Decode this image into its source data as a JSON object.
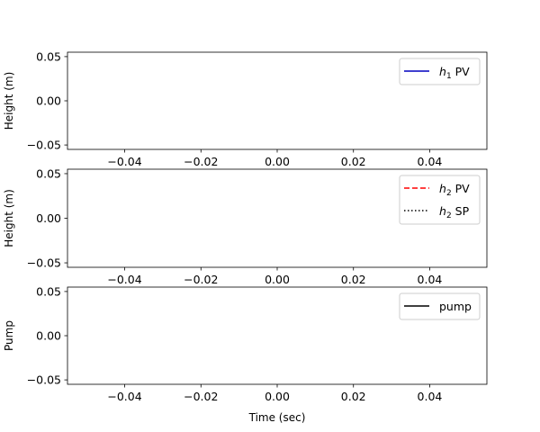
{
  "chart_data": [
    {
      "type": "line",
      "panel": "top",
      "ylabel": "Height (m)",
      "xlabel": "",
      "xlim": [
        -0.055,
        0.055
      ],
      "ylim": [
        -0.055,
        0.055
      ],
      "xticks": [
        -0.04,
        -0.02,
        0.0,
        0.02,
        0.04
      ],
      "xtick_labels": [
        "−0.04",
        "−0.02",
        "0.00",
        "0.02",
        "0.04"
      ],
      "yticks": [
        -0.05,
        0.0,
        0.05
      ],
      "ytick_labels": [
        "−0.05",
        "0.00",
        "0.05"
      ],
      "grid": false,
      "legend_position": "upper right",
      "series": [
        {
          "name": "h1 PV",
          "label_main": "h",
          "label_sub": "1",
          "label_rest": " PV",
          "color": "#0000bf",
          "style": "solid",
          "x": [],
          "y": []
        }
      ]
    },
    {
      "type": "line",
      "panel": "middle",
      "ylabel": "Height (m)",
      "xlabel": "",
      "xlim": [
        -0.055,
        0.055
      ],
      "ylim": [
        -0.055,
        0.055
      ],
      "xticks": [
        -0.04,
        -0.02,
        0.0,
        0.02,
        0.04
      ],
      "xtick_labels": [
        "−0.04",
        "−0.02",
        "0.00",
        "0.02",
        "0.04"
      ],
      "yticks": [
        -0.05,
        0.0,
        0.05
      ],
      "ytick_labels": [
        "−0.05",
        "0.00",
        "0.05"
      ],
      "grid": false,
      "legend_position": "upper right",
      "series": [
        {
          "name": "h2 PV",
          "label_main": "h",
          "label_sub": "2",
          "label_rest": " PV",
          "color": "#ff0000",
          "style": "dashed",
          "x": [],
          "y": []
        },
        {
          "name": "h2 SP",
          "label_main": "h",
          "label_sub": "2",
          "label_rest": " SP",
          "color": "#000000",
          "style": "dotted",
          "x": [],
          "y": []
        }
      ]
    },
    {
      "type": "line",
      "panel": "bottom",
      "ylabel": "Pump",
      "xlabel": "Time (sec)",
      "xlim": [
        -0.055,
        0.055
      ],
      "ylim": [
        -0.055,
        0.055
      ],
      "xticks": [
        -0.04,
        -0.02,
        0.0,
        0.02,
        0.04
      ],
      "xtick_labels": [
        "−0.04",
        "−0.02",
        "0.00",
        "0.02",
        "0.04"
      ],
      "yticks": [
        -0.05,
        0.0,
        0.05
      ],
      "ytick_labels": [
        "−0.05",
        "0.00",
        "0.05"
      ],
      "grid": false,
      "legend_position": "upper right",
      "series": [
        {
          "name": "pump",
          "label_main": "pump",
          "label_sub": "",
          "label_rest": "",
          "color": "#000000",
          "style": "solid",
          "x": [],
          "y": []
        }
      ]
    }
  ]
}
